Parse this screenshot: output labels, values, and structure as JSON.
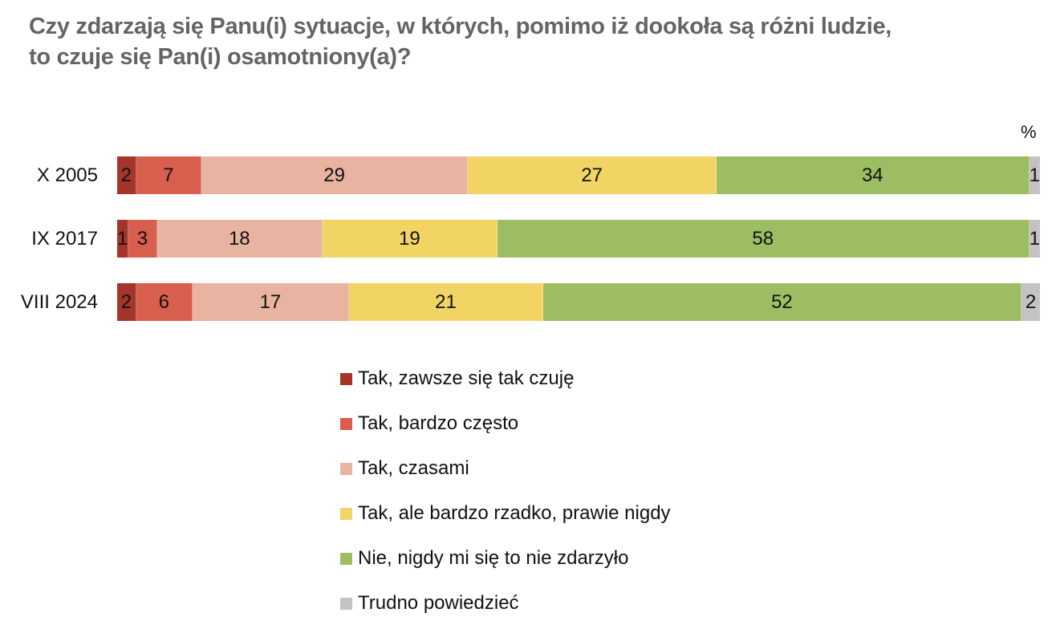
{
  "title": {
    "line1": "Czy zdarzają się Panu(i) sytuacje, w których, pomimo iż dookoła są różni ludzie,",
    "line2": "to czuje się Pan(i) osamotniony(a)?"
  },
  "unit_label": "%",
  "categories_colors": [
    "#a5342a",
    "#d85e4e",
    "#e8b3a0",
    "#f2d465",
    "#9cbd61",
    "#c3c3c3"
  ],
  "legend": [
    {
      "label": "Tak, zawsze się tak czuję",
      "color": "#a5342a"
    },
    {
      "label": "Tak, bardzo często",
      "color": "#d85e4e"
    },
    {
      "label": "Tak, czasami",
      "color": "#e8b3a0"
    },
    {
      "label": "Tak, ale bardzo rzadko, prawie nigdy",
      "color": "#f2d465"
    },
    {
      "label": "Nie, nigdy mi się to nie zdarzyło",
      "color": "#9cbd61"
    },
    {
      "label": "Trudno powiedzieć",
      "color": "#c3c3c3"
    }
  ],
  "rows": [
    {
      "label": "X 2005",
      "values": [
        2,
        7,
        29,
        27,
        34,
        1
      ]
    },
    {
      "label": "IX 2017",
      "values": [
        1,
        3,
        18,
        19,
        58,
        1
      ]
    },
    {
      "label": "VIII 2024",
      "values": [
        2,
        6,
        17,
        21,
        52,
        2
      ]
    }
  ],
  "chart_data": {
    "type": "bar",
    "orientation": "horizontal",
    "stacked": true,
    "title": "Czy zdarzają się Panu(i) sytuacje, w których, pomimo iż dookoła są różni ludzie, to czuje się Pan(i) osamotniony(a)?",
    "unit": "%",
    "categories": [
      "X 2005",
      "IX 2017",
      "VIII 2024"
    ],
    "series": [
      {
        "name": "Tak, zawsze się tak czuję",
        "color": "#a5342a",
        "values": [
          2,
          1,
          2
        ]
      },
      {
        "name": "Tak, bardzo często",
        "color": "#d85e4e",
        "values": [
          7,
          3,
          6
        ]
      },
      {
        "name": "Tak, czasami",
        "color": "#e8b3a0",
        "values": [
          29,
          18,
          17
        ]
      },
      {
        "name": "Tak, ale bardzo rzadko, prawie nigdy",
        "color": "#f2d465",
        "values": [
          27,
          19,
          21
        ]
      },
      {
        "name": "Nie, nigdy mi się to nie zdarzyło",
        "color": "#9cbd61",
        "values": [
          34,
          58,
          52
        ]
      },
      {
        "name": "Trudno powiedzieć",
        "color": "#c3c3c3",
        "values": [
          1,
          1,
          2
        ]
      }
    ],
    "xlim": [
      0,
      100
    ],
    "grid": false,
    "legend_position": "bottom",
    "data_labels": true
  }
}
